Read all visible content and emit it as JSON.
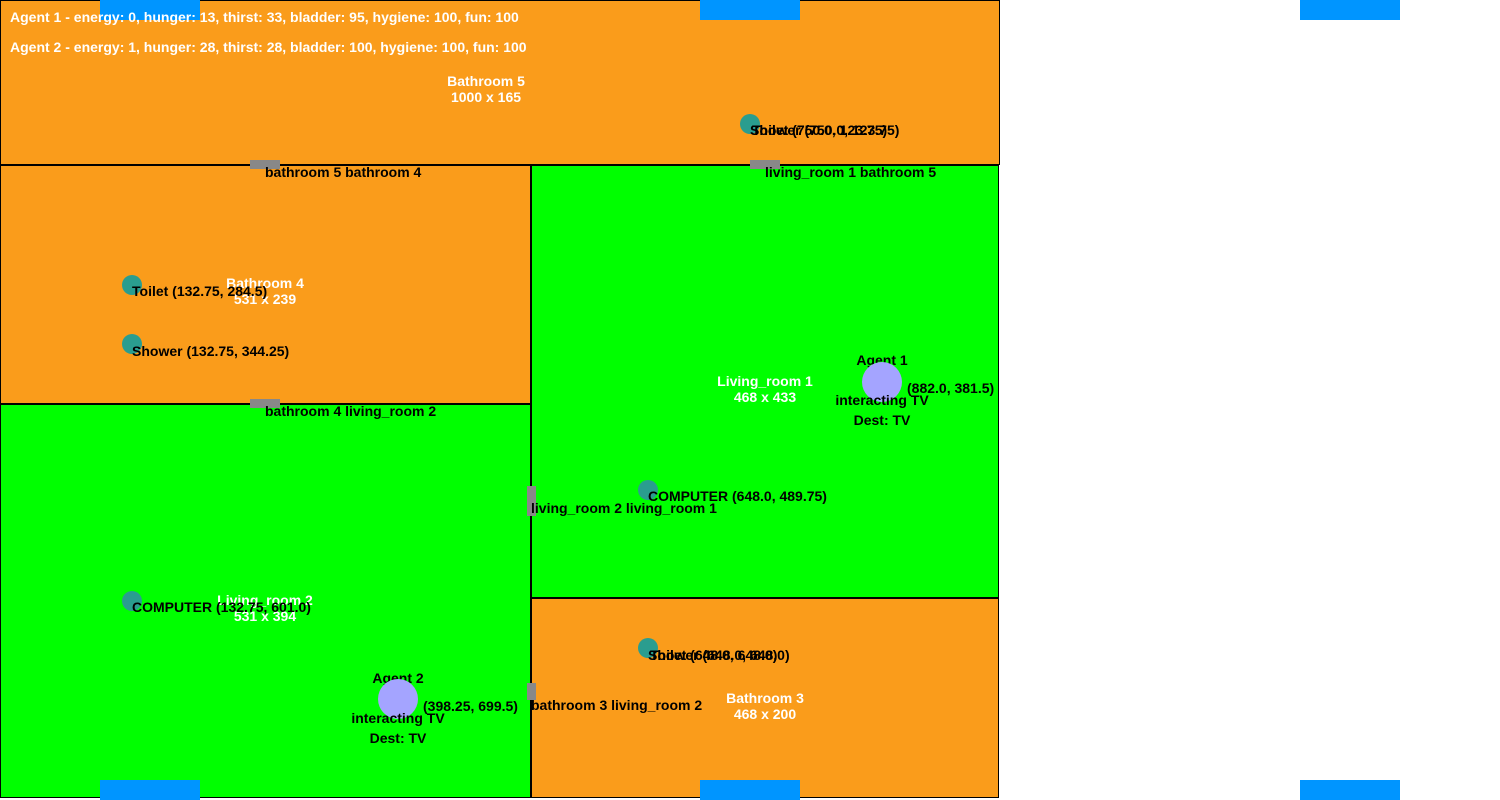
{
  "colors": {
    "bathroom": "#fa9c1b",
    "living_room": "#00ff00",
    "window": "#0095ff",
    "door": "#888888",
    "object": "#2a9d8f",
    "agent": "#a4a4ff"
  },
  "status": {
    "agent1": "Agent 1 - energy: 0, hunger: 13, thirst: 33, bladder: 95, hygiene: 100, fun: 100",
    "agent2": "Agent 2 - energy: 1, hunger: 28, thirst: 28, bladder: 100, hygiene: 100, fun: 100"
  },
  "rooms": {
    "bathroom5": {
      "name": "Bathroom 5",
      "size": "1000 x 165"
    },
    "bathroom4": {
      "name": "Bathroom 4",
      "size": "531 x 239"
    },
    "living_room1": {
      "name": "Living_room 1",
      "size": "468 x 433"
    },
    "living_room2": {
      "name": "Living_room 2",
      "size": "531 x 394"
    },
    "bathroom3": {
      "name": "Bathroom 3",
      "size": "468 x 200"
    }
  },
  "doors": {
    "d1": "bathroom 5 bathroom 4",
    "d2": "living_room 1 bathroom 5",
    "d3": "bathroom 4 living_room 2",
    "d4": "living_room 2 living_room 1",
    "d5": "bathroom 3 living_room 2"
  },
  "objects": {
    "b5_shower": "Shower (750.0, 123.75)",
    "b5_toilet": "Toilet (750.0, 123.75)",
    "b4_toilet": "Toilet (132.75, 284.5)",
    "b4_shower": "Shower (132.75, 344.25)",
    "lr1_computer": "COMPUTER (648.0, 489.75)",
    "lr2_computer": "COMPUTER (132.75, 601.0)",
    "b3_shower": "Shower (648.0, 648.0)",
    "b3_toilet": "Toilet (648.0, 648.0)"
  },
  "agents": {
    "agent1": {
      "name": "Agent 1",
      "coords": "(882.0, 381.5)",
      "action": "interacting TV",
      "dest": "Dest: TV"
    },
    "agent2": {
      "name": "Agent 2",
      "coords": "(398.25, 699.5)",
      "action": "interacting TV",
      "dest": "Dest: TV"
    }
  }
}
